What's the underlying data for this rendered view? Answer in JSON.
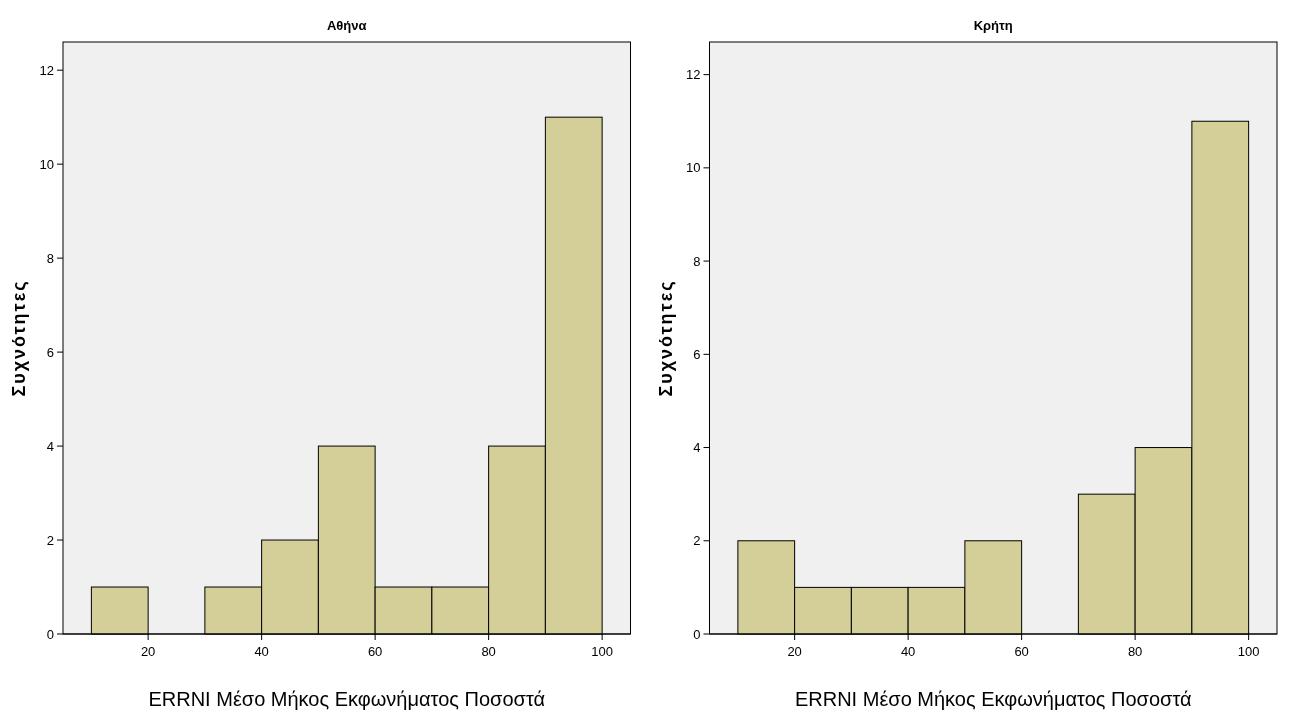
{
  "chart_data": [
    {
      "type": "histogram",
      "title": "Αθήνα",
      "xlabel": "ERRNI Μέσο Μήκος Εκφωνήματος Ποσοστά",
      "ylabel": "Συχνότητες",
      "bins": [
        10,
        20,
        30,
        40,
        50,
        60,
        70,
        80,
        90,
        100
      ],
      "values": [
        1,
        0,
        1,
        2,
        4,
        1,
        1,
        4,
        11
      ],
      "color": "#d4cf98",
      "xlim": [
        5,
        105
      ],
      "xticks": [
        20,
        40,
        60,
        80,
        100
      ],
      "ylim": [
        0,
        12.6
      ],
      "yticks": [
        0,
        2,
        4,
        6,
        8,
        10,
        12
      ],
      "grid": false
    },
    {
      "type": "histogram",
      "title": "Κρήτη",
      "xlabel": "ERRNI Μέσο Μήκος Εκφωνήματος Ποσοστά",
      "ylabel": "Συχνότητες",
      "bins": [
        10,
        20,
        30,
        40,
        50,
        60,
        70,
        80,
        90,
        100
      ],
      "values": [
        2,
        1,
        1,
        1,
        2,
        0,
        3,
        4,
        11
      ],
      "color": "#d4cf98",
      "xlim": [
        5,
        105
      ],
      "xticks": [
        20,
        40,
        60,
        80,
        100
      ],
      "ylim": [
        0,
        12.7
      ],
      "yticks": [
        0,
        2,
        4,
        6,
        8,
        10,
        12
      ],
      "grid": false
    }
  ]
}
